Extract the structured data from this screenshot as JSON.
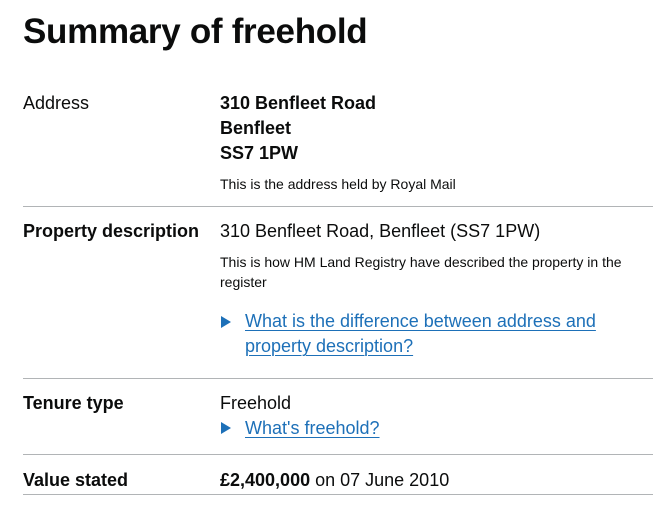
{
  "page_title": "Summary of freehold",
  "address": {
    "label": "Address",
    "line1": "310 Benfleet Road",
    "line2": "Benfleet",
    "line3": "SS7 1PW",
    "hint": "This is the address held by Royal Mail"
  },
  "property_description": {
    "label": "Property description",
    "value": "310 Benfleet Road, Benfleet (SS7 1PW)",
    "hint": "This is how HM Land Registry have described the property in the register",
    "details_summary": "What is the difference between address and property description?"
  },
  "tenure": {
    "label": "Tenure type",
    "value": "Freehold",
    "details_summary": "What's freehold?"
  },
  "value_stated": {
    "label": "Value stated",
    "amount": "£2,400,000",
    "date_text": " on 07 June 2010"
  },
  "colors": {
    "link": "#1d70b8",
    "text": "#0b0c0c",
    "border": "#b1b4b6"
  }
}
